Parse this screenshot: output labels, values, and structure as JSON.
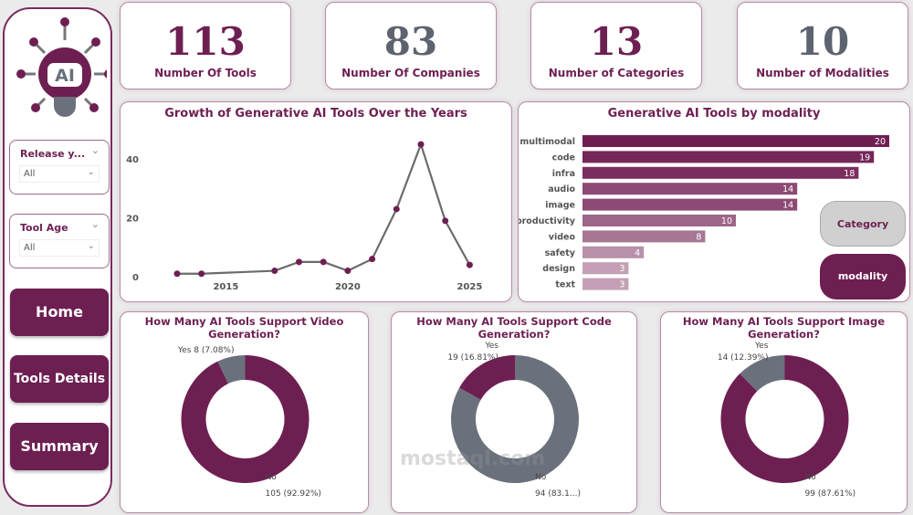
{
  "colors": {
    "accent": "#6e1f52",
    "gray": "#6b717c"
  },
  "logo": {
    "text": "AI"
  },
  "kpis": [
    {
      "value": "113",
      "label": "Number Of Tools"
    },
    {
      "value": "83",
      "label": "Number Of Companies"
    },
    {
      "value": "13",
      "label": "Number of Categories"
    },
    {
      "value": "10",
      "label": "Number of Modalities"
    }
  ],
  "slicers": [
    {
      "title": "Release y...",
      "value": "All"
    },
    {
      "title": "Tool Age",
      "value": "All"
    }
  ],
  "nav": {
    "home": "Home",
    "tools_details": "Tools Details",
    "summary": "Summary"
  },
  "toggles": {
    "category": "Category",
    "modality": "modality"
  },
  "watermark": "mostaql.com",
  "chart_data": [
    {
      "type": "line",
      "title": "Growth of Generative AI Tools Over the Years",
      "x": [
        2013,
        2014,
        2017,
        2018,
        2019,
        2020,
        2021,
        2022,
        2023,
        2024,
        2025
      ],
      "y": [
        1,
        1,
        2,
        5,
        5,
        2,
        6,
        23,
        45,
        19,
        4
      ],
      "xticks": [
        "2015",
        "2020",
        "2025"
      ],
      "yticks": [
        "0",
        "20",
        "40"
      ],
      "ylim": [
        0,
        48
      ],
      "grid": false
    },
    {
      "type": "bar",
      "title": "Generative AI Tools by modality",
      "categories": [
        "multimodal",
        "code",
        "infra",
        "audio",
        "image",
        "productivity",
        "video",
        "safety",
        "design",
        "text"
      ],
      "values": [
        20,
        19,
        18,
        14,
        14,
        10,
        8,
        4,
        3,
        3
      ]
    },
    {
      "type": "pie",
      "title": "How Many AI Tools Support Video Generation?",
      "slices": [
        {
          "label": "No",
          "value": 105,
          "text": "105 (92.92%)",
          "color": "#6e1f52"
        },
        {
          "label": "Yes",
          "value": 8,
          "text": "Yes 8 (7.08%)",
          "color": "#6b717c"
        }
      ]
    },
    {
      "type": "pie",
      "title": "How Many AI Tools Support Code Generation?",
      "slices": [
        {
          "label": "No",
          "value": 94,
          "text": "94 (83.1...)",
          "color": "#6b717c"
        },
        {
          "label": "Yes",
          "value": 19,
          "text": "19 (16.81%)",
          "color": "#6e1f52"
        }
      ]
    },
    {
      "type": "pie",
      "title": "How Many AI Tools Support Image Generation?",
      "slices": [
        {
          "label": "No",
          "value": 99,
          "text": "99 (87.61%)",
          "color": "#6e1f52"
        },
        {
          "label": "Yes",
          "value": 14,
          "text": "14 (12.39%)",
          "color": "#6b717c"
        }
      ]
    }
  ]
}
